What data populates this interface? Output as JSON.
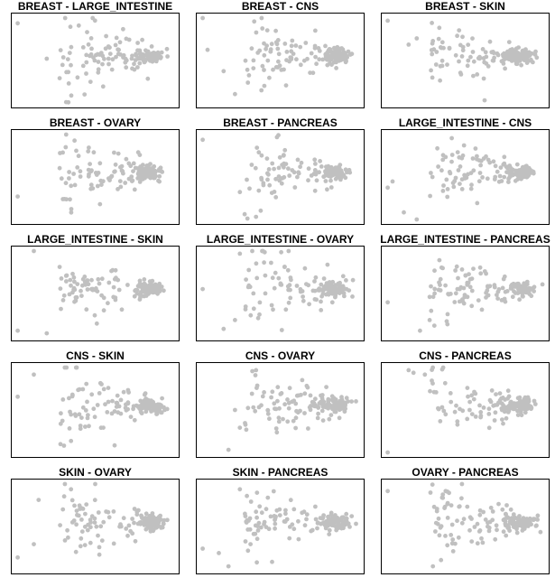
{
  "chart_data": [
    {
      "type": "scatter",
      "title": "BREAST - LARGE_INTESTINE",
      "seed": 11,
      "spread": 0.55,
      "outliers": [
        [
          0.02,
          0.92
        ],
        [
          0.2,
          0.52
        ],
        [
          0.32,
          0.03
        ],
        [
          0.45,
          0.82
        ],
        [
          0.28,
          0.3
        ]
      ]
    },
    {
      "type": "scatter",
      "title": "BREAST - CNS",
      "seed": 23,
      "spread": 0.45,
      "outliers": [
        [
          0.02,
          0.98
        ],
        [
          0.15,
          0.38
        ],
        [
          0.22,
          0.12
        ],
        [
          0.05,
          0.62
        ],
        [
          0.3,
          0.25
        ]
      ]
    },
    {
      "type": "scatter",
      "title": "BREAST - SKIN",
      "seed": 37,
      "spread": 0.4,
      "outliers": [
        [
          0.02,
          0.95
        ],
        [
          0.15,
          0.68
        ],
        [
          0.62,
          0.05
        ],
        [
          0.2,
          0.75
        ],
        [
          0.3,
          0.72
        ]
      ]
    },
    {
      "type": "scatter",
      "title": "BREAST - OVARY",
      "seed": 41,
      "spread": 0.5,
      "outliers": [
        [
          0.02,
          0.28
        ],
        [
          0.3,
          0.25
        ],
        [
          0.32,
          0.98
        ],
        [
          0.28,
          0.6
        ],
        [
          0.35,
          0.4
        ]
      ]
    },
    {
      "type": "scatter",
      "title": "BREAST - PANCREAS",
      "seed": 53,
      "spread": 0.5,
      "outliers": [
        [
          0.02,
          0.92
        ],
        [
          0.35,
          0.05
        ],
        [
          0.25,
          0.33
        ],
        [
          0.28,
          0.08
        ],
        [
          0.48,
          0.95
        ]
      ]
    },
    {
      "type": "scatter",
      "title": "LARGE_INTESTINE - CNS",
      "seed": 61,
      "spread": 0.45,
      "outliers": [
        [
          0.02,
          0.38
        ],
        [
          0.2,
          0.02
        ],
        [
          0.12,
          0.1
        ],
        [
          0.42,
          0.75
        ],
        [
          0.05,
          0.45
        ]
      ]
    },
    {
      "type": "scatter",
      "title": "LARGE_INTESTINE - SKIN",
      "seed": 71,
      "spread": 0.45,
      "outliers": [
        [
          0.02,
          0.08
        ],
        [
          0.12,
          0.98
        ],
        [
          0.28,
          0.8
        ],
        [
          0.32,
          0.7
        ],
        [
          0.2,
          0.05
        ]
      ]
    },
    {
      "type": "scatter",
      "title": "LARGE_INTESTINE - OVARY",
      "seed": 83,
      "spread": 0.55,
      "outliers": [
        [
          0.02,
          0.55
        ],
        [
          0.25,
          0.95
        ],
        [
          0.4,
          0.85
        ],
        [
          0.15,
          0.1
        ],
        [
          0.22,
          0.2
        ]
      ]
    },
    {
      "type": "scatter",
      "title": "LARGE_INTESTINE - PANCREAS",
      "seed": 97,
      "spread": 0.45,
      "outliers": [
        [
          0.02,
          0.4
        ],
        [
          0.22,
          0.08
        ],
        [
          0.28,
          0.2
        ],
        [
          0.52,
          0.62
        ],
        [
          0.55,
          0.78
        ]
      ]
    },
    {
      "type": "scatter",
      "title": "CNS - SKIN",
      "seed": 101,
      "spread": 0.5,
      "outliers": [
        [
          0.02,
          0.65
        ],
        [
          0.12,
          0.9
        ],
        [
          0.35,
          0.15
        ],
        [
          0.55,
          0.3
        ],
        [
          0.62,
          0.1
        ]
      ]
    },
    {
      "type": "scatter",
      "title": "CNS - OVARY",
      "seed": 113,
      "spread": 0.5,
      "outliers": [
        [
          0.18,
          0.05
        ],
        [
          0.25,
          0.3
        ],
        [
          0.35,
          0.95
        ],
        [
          0.22,
          0.5
        ],
        [
          0.4,
          0.7
        ]
      ]
    },
    {
      "type": "scatter",
      "title": "CNS - PANCREAS",
      "seed": 127,
      "spread": 0.5,
      "outliers": [
        [
          0.02,
          0.02
        ],
        [
          0.18,
          0.92
        ],
        [
          0.15,
          0.95
        ],
        [
          0.25,
          0.9
        ],
        [
          0.32,
          0.7
        ]
      ]
    },
    {
      "type": "scatter",
      "title": "SKIN - OVARY",
      "seed": 131,
      "spread": 0.5,
      "outliers": [
        [
          0.02,
          0.15
        ],
        [
          0.15,
          0.8
        ],
        [
          0.35,
          0.92
        ],
        [
          0.5,
          0.98
        ],
        [
          0.12,
          0.3
        ]
      ]
    },
    {
      "type": "scatter",
      "title": "SKIN - PANCREAS",
      "seed": 149,
      "spread": 0.45,
      "outliers": [
        [
          0.02,
          0.25
        ],
        [
          0.18,
          0.05
        ],
        [
          0.25,
          0.92
        ],
        [
          0.45,
          0.1
        ],
        [
          0.12,
          0.2
        ]
      ]
    },
    {
      "type": "scatter",
      "title": "OVARY - PANCREAS",
      "seed": 157,
      "spread": 0.45,
      "outliers": [
        [
          0.02,
          0.9
        ],
        [
          0.3,
          0.05
        ],
        [
          0.35,
          0.12
        ],
        [
          0.48,
          0.98
        ],
        [
          0.4,
          0.88
        ]
      ]
    }
  ],
  "colors": {
    "point": "#c0c0c0",
    "frame": "#000000",
    "title": "#000000",
    "background": "#ffffff"
  }
}
